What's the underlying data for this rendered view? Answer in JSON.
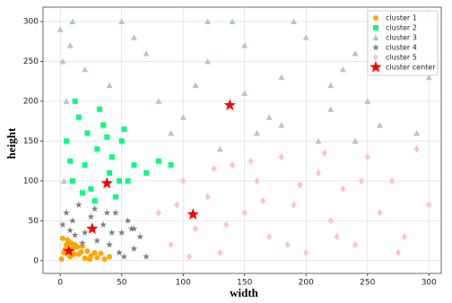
{
  "chart_data": {
    "type": "scatter",
    "xlabel": "width",
    "ylabel": "height",
    "xlim": [
      -14,
      310
    ],
    "ylim": [
      -16,
      318
    ],
    "xticks": [
      0,
      50,
      100,
      150,
      200,
      250,
      300
    ],
    "yticks": [
      0,
      50,
      100,
      150,
      200,
      250,
      300
    ],
    "grid": true,
    "legend": "upper right",
    "series": [
      {
        "name": "cluster 1",
        "color": "#ffa500",
        "marker": "circle",
        "x": [
          1,
          3,
          5,
          8,
          10,
          12,
          15,
          18,
          20,
          22,
          25,
          28,
          30,
          33,
          36,
          40,
          2,
          6,
          9,
          14,
          17,
          24,
          4,
          11,
          7
        ],
        "y": [
          2,
          10,
          20,
          5,
          15,
          20,
          8,
          18,
          3,
          12,
          6,
          10,
          4,
          9,
          2,
          5,
          28,
          26,
          22,
          17,
          11,
          2,
          14,
          8,
          24
        ]
      },
      {
        "name": "cluster 2",
        "color": "#00ff7f",
        "marker": "square",
        "x": [
          5,
          10,
          15,
          20,
          25,
          30,
          35,
          40,
          45,
          50,
          55,
          60,
          70,
          80,
          90,
          12,
          22,
          32,
          42,
          52,
          18,
          28,
          38,
          8,
          48
        ],
        "y": [
          150,
          100,
          180,
          120,
          90,
          140,
          170,
          110,
          80,
          150,
          100,
          120,
          110,
          125,
          120,
          200,
          160,
          190,
          130,
          165,
          85,
          75,
          155,
          125,
          100
        ]
      },
      {
        "name": "cluster 3",
        "color": "#b0c4de",
        "marker": "triangle",
        "x": [
          0,
          2,
          5,
          3,
          8,
          10,
          20,
          40,
          60,
          80,
          100,
          120,
          140,
          160,
          180,
          200,
          220,
          240,
          260,
          280,
          300,
          50,
          70,
          90,
          110,
          130,
          150,
          170,
          190,
          210,
          230,
          250,
          270,
          290,
          150,
          180,
          220,
          260,
          120,
          240
        ],
        "y": [
          290,
          250,
          200,
          100,
          270,
          300,
          240,
          220,
          280,
          200,
          180,
          250,
          300,
          160,
          230,
          280,
          190,
          260,
          170,
          300,
          230,
          300,
          260,
          160,
          220,
          140,
          270,
          180,
          300,
          150,
          240,
          200,
          280,
          160,
          210,
          170,
          220,
          240,
          300,
          150
        ]
      },
      {
        "name": "cluster 4",
        "color": "#808080",
        "marker": "star",
        "x": [
          2,
          5,
          10,
          15,
          20,
          25,
          30,
          35,
          40,
          45,
          50,
          55,
          60,
          65,
          70,
          8,
          18,
          28,
          38,
          48,
          58,
          12,
          42,
          52,
          60
        ],
        "y": [
          45,
          60,
          50,
          70,
          35,
          55,
          25,
          45,
          20,
          60,
          35,
          50,
          15,
          30,
          5,
          38,
          22,
          65,
          60,
          10,
          40,
          32,
          35,
          5,
          40
        ]
      },
      {
        "name": "cluster 5",
        "color": "#ffc0cb",
        "marker": "diamond",
        "x": [
          80,
          90,
          100,
          110,
          120,
          130,
          140,
          150,
          160,
          170,
          180,
          190,
          200,
          210,
          220,
          230,
          240,
          250,
          260,
          270,
          280,
          290,
          300,
          95,
          125,
          155,
          185,
          215,
          245,
          275,
          105,
          135,
          165,
          195,
          225
        ],
        "y": [
          60,
          20,
          100,
          40,
          80,
          10,
          120,
          60,
          100,
          30,
          130,
          70,
          10,
          110,
          50,
          90,
          20,
          130,
          60,
          100,
          30,
          140,
          70,
          70,
          115,
          125,
          20,
          135,
          100,
          10,
          5,
          45,
          75,
          95,
          30
        ]
      },
      {
        "name": "cluster center",
        "color": "#ff0000",
        "marker": "bigstar",
        "x": [
          7,
          26,
          38,
          108,
          138
        ],
        "y": [
          12,
          40,
          97,
          58,
          195
        ]
      }
    ]
  }
}
